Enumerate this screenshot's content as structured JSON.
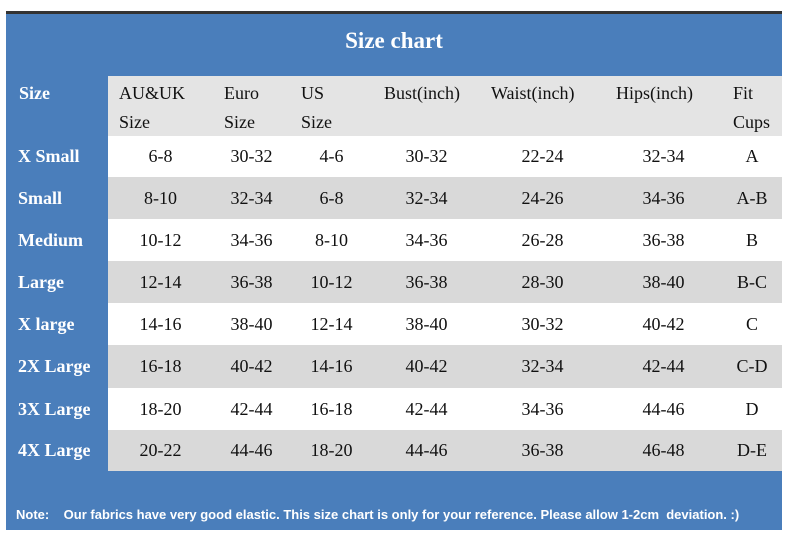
{
  "title": "Size chart",
  "table": {
    "headers": [
      [
        "Size"
      ],
      [
        "AU&UK",
        "Size"
      ],
      [
        "Euro",
        "Size"
      ],
      [
        "US",
        "Size"
      ],
      [
        "Bust(inch)"
      ],
      [
        "Waist(inch)"
      ],
      [
        "Hips(inch)"
      ],
      [
        "Fit",
        "Cups"
      ]
    ],
    "rows": [
      [
        "X Small",
        "6-8",
        "30-32",
        "4-6",
        "30-32",
        "22-24",
        "32-34",
        "A"
      ],
      [
        "Small",
        "8-10",
        "32-34",
        "6-8",
        "32-34",
        "24-26",
        "34-36",
        "A-B"
      ],
      [
        "Medium",
        "10-12",
        "34-36",
        "8-10",
        "34-36",
        "26-28",
        "36-38",
        "B"
      ],
      [
        "Large",
        "12-14",
        "36-38",
        "10-12",
        "36-38",
        "28-30",
        "38-40",
        "B-C"
      ],
      [
        "X large",
        "14-16",
        "38-40",
        "12-14",
        "38-40",
        "30-32",
        "40-42",
        "C"
      ],
      [
        "2X Large",
        "16-18",
        "40-42",
        "14-16",
        "40-42",
        "32-34",
        "42-44",
        "C-D"
      ],
      [
        "3X Large",
        "18-20",
        "42-44",
        "16-18",
        "42-44",
        "34-36",
        "44-46",
        "D"
      ],
      [
        "4X Large",
        "20-22",
        "44-46",
        "18-20",
        "44-46",
        "36-38",
        "46-48",
        "D-E"
      ]
    ]
  },
  "note": {
    "label": "Note:",
    "text": "Our fabrics have very good elastic. This size chart is only for your reference. Please allow 1-2cm  deviation. :)"
  }
}
